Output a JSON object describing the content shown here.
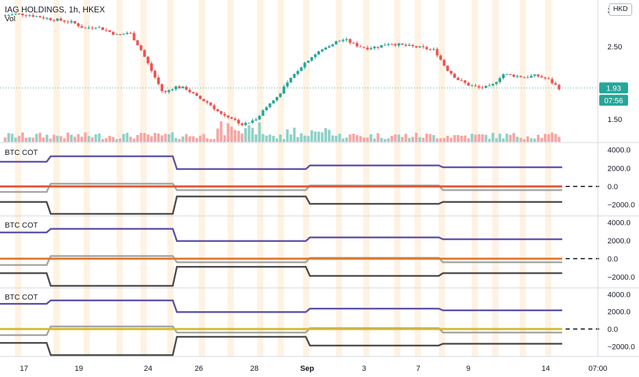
{
  "title": "IAG HOLDINGS, 1h, HKEX",
  "vol_label": "Vol",
  "currency_button": "HKD",
  "price_axis_ticks": [
    "3",
    "2.50",
    "2.00",
    "1.50"
  ],
  "price_badge": "1.93",
  "countdown_badge": "07:56",
  "indicator_axis_ticks": [
    "4000.0",
    "2000.0",
    "0.0",
    "−2000.0"
  ],
  "time_axis_labels": [
    "17",
    "19",
    "24",
    "26",
    "28",
    "Sep",
    "3",
    "7",
    "9",
    "14",
    "07:00"
  ],
  "colors": {
    "up": "#26a69a",
    "down": "#ef5350",
    "vol_up": "#8fd1c8",
    "vol_down": "#f5a6a4",
    "session_band": "#fde9cf",
    "purple_line": "#5a4fa8",
    "gray_line": "#a3a3a3",
    "dark_line": "#4a4a4a",
    "zero_dashed": "#000000",
    "panel1_zero": "#e0522e",
    "panel2_zero": "#e07a2e",
    "panel3_zero": "#d4b82a"
  },
  "chart_data": [
    {
      "type": "candlestick",
      "title": "IAG HOLDINGS, 1h, HKEX",
      "ylim": [
        1.3,
        3.0
      ],
      "x_labels": [
        "17",
        "19",
        "24",
        "26",
        "28",
        "Sep",
        "3",
        "7",
        "9",
        "14"
      ],
      "close_path": [
        2.93,
        2.95,
        2.94,
        2.91,
        2.88,
        2.86,
        2.83,
        2.75,
        2.78,
        2.72,
        2.65,
        2.7,
        2.46,
        2.15,
        1.85,
        1.95,
        1.92,
        1.8,
        1.72,
        1.58,
        1.52,
        1.42,
        1.48,
        1.65,
        1.8,
        2.0,
        2.2,
        2.35,
        2.45,
        2.55,
        2.6,
        2.52,
        2.48,
        2.5,
        2.55,
        2.52,
        2.5,
        2.48,
        2.45,
        2.2,
        2.05,
        1.97,
        1.93,
        1.95,
        2.12,
        2.1,
        2.08,
        2.1,
        2.05,
        1.93
      ],
      "last_price": 1.93,
      "volume_series": "relative bars, higher around 24-26 Aug"
    },
    {
      "type": "line",
      "title": "BTC COT",
      "ylim": [
        -3000,
        4500
      ],
      "ticks": [
        4000,
        2000,
        0,
        -2000
      ],
      "series": [
        {
          "color": "purple",
          "steps": [
            [
              0,
              2700
            ],
            [
              0.09,
              3300
            ],
            [
              0.3,
              1900
            ],
            [
              0.54,
              2300
            ],
            [
              0.78,
              2100
            ]
          ]
        },
        {
          "color": "gray",
          "steps": [
            [
              0,
              -600
            ],
            [
              0.09,
              300
            ],
            [
              0.3,
              -400
            ],
            [
              0.54,
              100
            ],
            [
              0.78,
              -400
            ]
          ]
        },
        {
          "color": "dark",
          "steps": [
            [
              0,
              -1700
            ],
            [
              0.09,
              -3000
            ],
            [
              0.3,
              -1100
            ],
            [
              0.54,
              -1900
            ],
            [
              0.78,
              -1700
            ]
          ]
        },
        {
          "color": "zero",
          "steps": [
            [
              0,
              0
            ]
          ]
        }
      ]
    },
    {
      "type": "line",
      "title": "BTC COT",
      "ylim": [
        -3000,
        4500
      ],
      "ticks": [
        4000,
        2000,
        0,
        -2000
      ],
      "series": [
        {
          "color": "purple",
          "steps": [
            [
              0,
              2900
            ],
            [
              0.09,
              3300
            ],
            [
              0.3,
              1950
            ],
            [
              0.54,
              2350
            ],
            [
              0.78,
              2150
            ]
          ]
        },
        {
          "color": "gray",
          "steps": [
            [
              0,
              -700
            ],
            [
              0.09,
              300
            ],
            [
              0.3,
              -400
            ],
            [
              0.54,
              100
            ],
            [
              0.78,
              -400
            ]
          ]
        },
        {
          "color": "dark",
          "steps": [
            [
              0,
              -1600
            ],
            [
              0.09,
              -3000
            ],
            [
              0.3,
              -900
            ],
            [
              0.54,
              -1900
            ],
            [
              0.78,
              -1600
            ]
          ]
        },
        {
          "color": "zero",
          "steps": [
            [
              0,
              0
            ]
          ]
        }
      ]
    },
    {
      "type": "line",
      "title": "BTC COT",
      "ylim": [
        -3000,
        4500
      ],
      "ticks": [
        4000,
        2000,
        0,
        -2000
      ],
      "series": [
        {
          "color": "purple",
          "steps": [
            [
              0,
              2900
            ],
            [
              0.09,
              3300
            ],
            [
              0.3,
              1950
            ],
            [
              0.54,
              2350
            ],
            [
              0.78,
              2150
            ]
          ]
        },
        {
          "color": "gray",
          "steps": [
            [
              0,
              -700
            ],
            [
              0.09,
              300
            ],
            [
              0.3,
              -400
            ],
            [
              0.54,
              100
            ],
            [
              0.78,
              -400
            ]
          ]
        },
        {
          "color": "dark",
          "steps": [
            [
              0,
              -1600
            ],
            [
              0.09,
              -3000
            ],
            [
              0.3,
              -900
            ],
            [
              0.54,
              -1900
            ],
            [
              0.78,
              -1700
            ]
          ]
        },
        {
          "color": "zero",
          "steps": [
            [
              0,
              0
            ]
          ]
        }
      ]
    }
  ]
}
